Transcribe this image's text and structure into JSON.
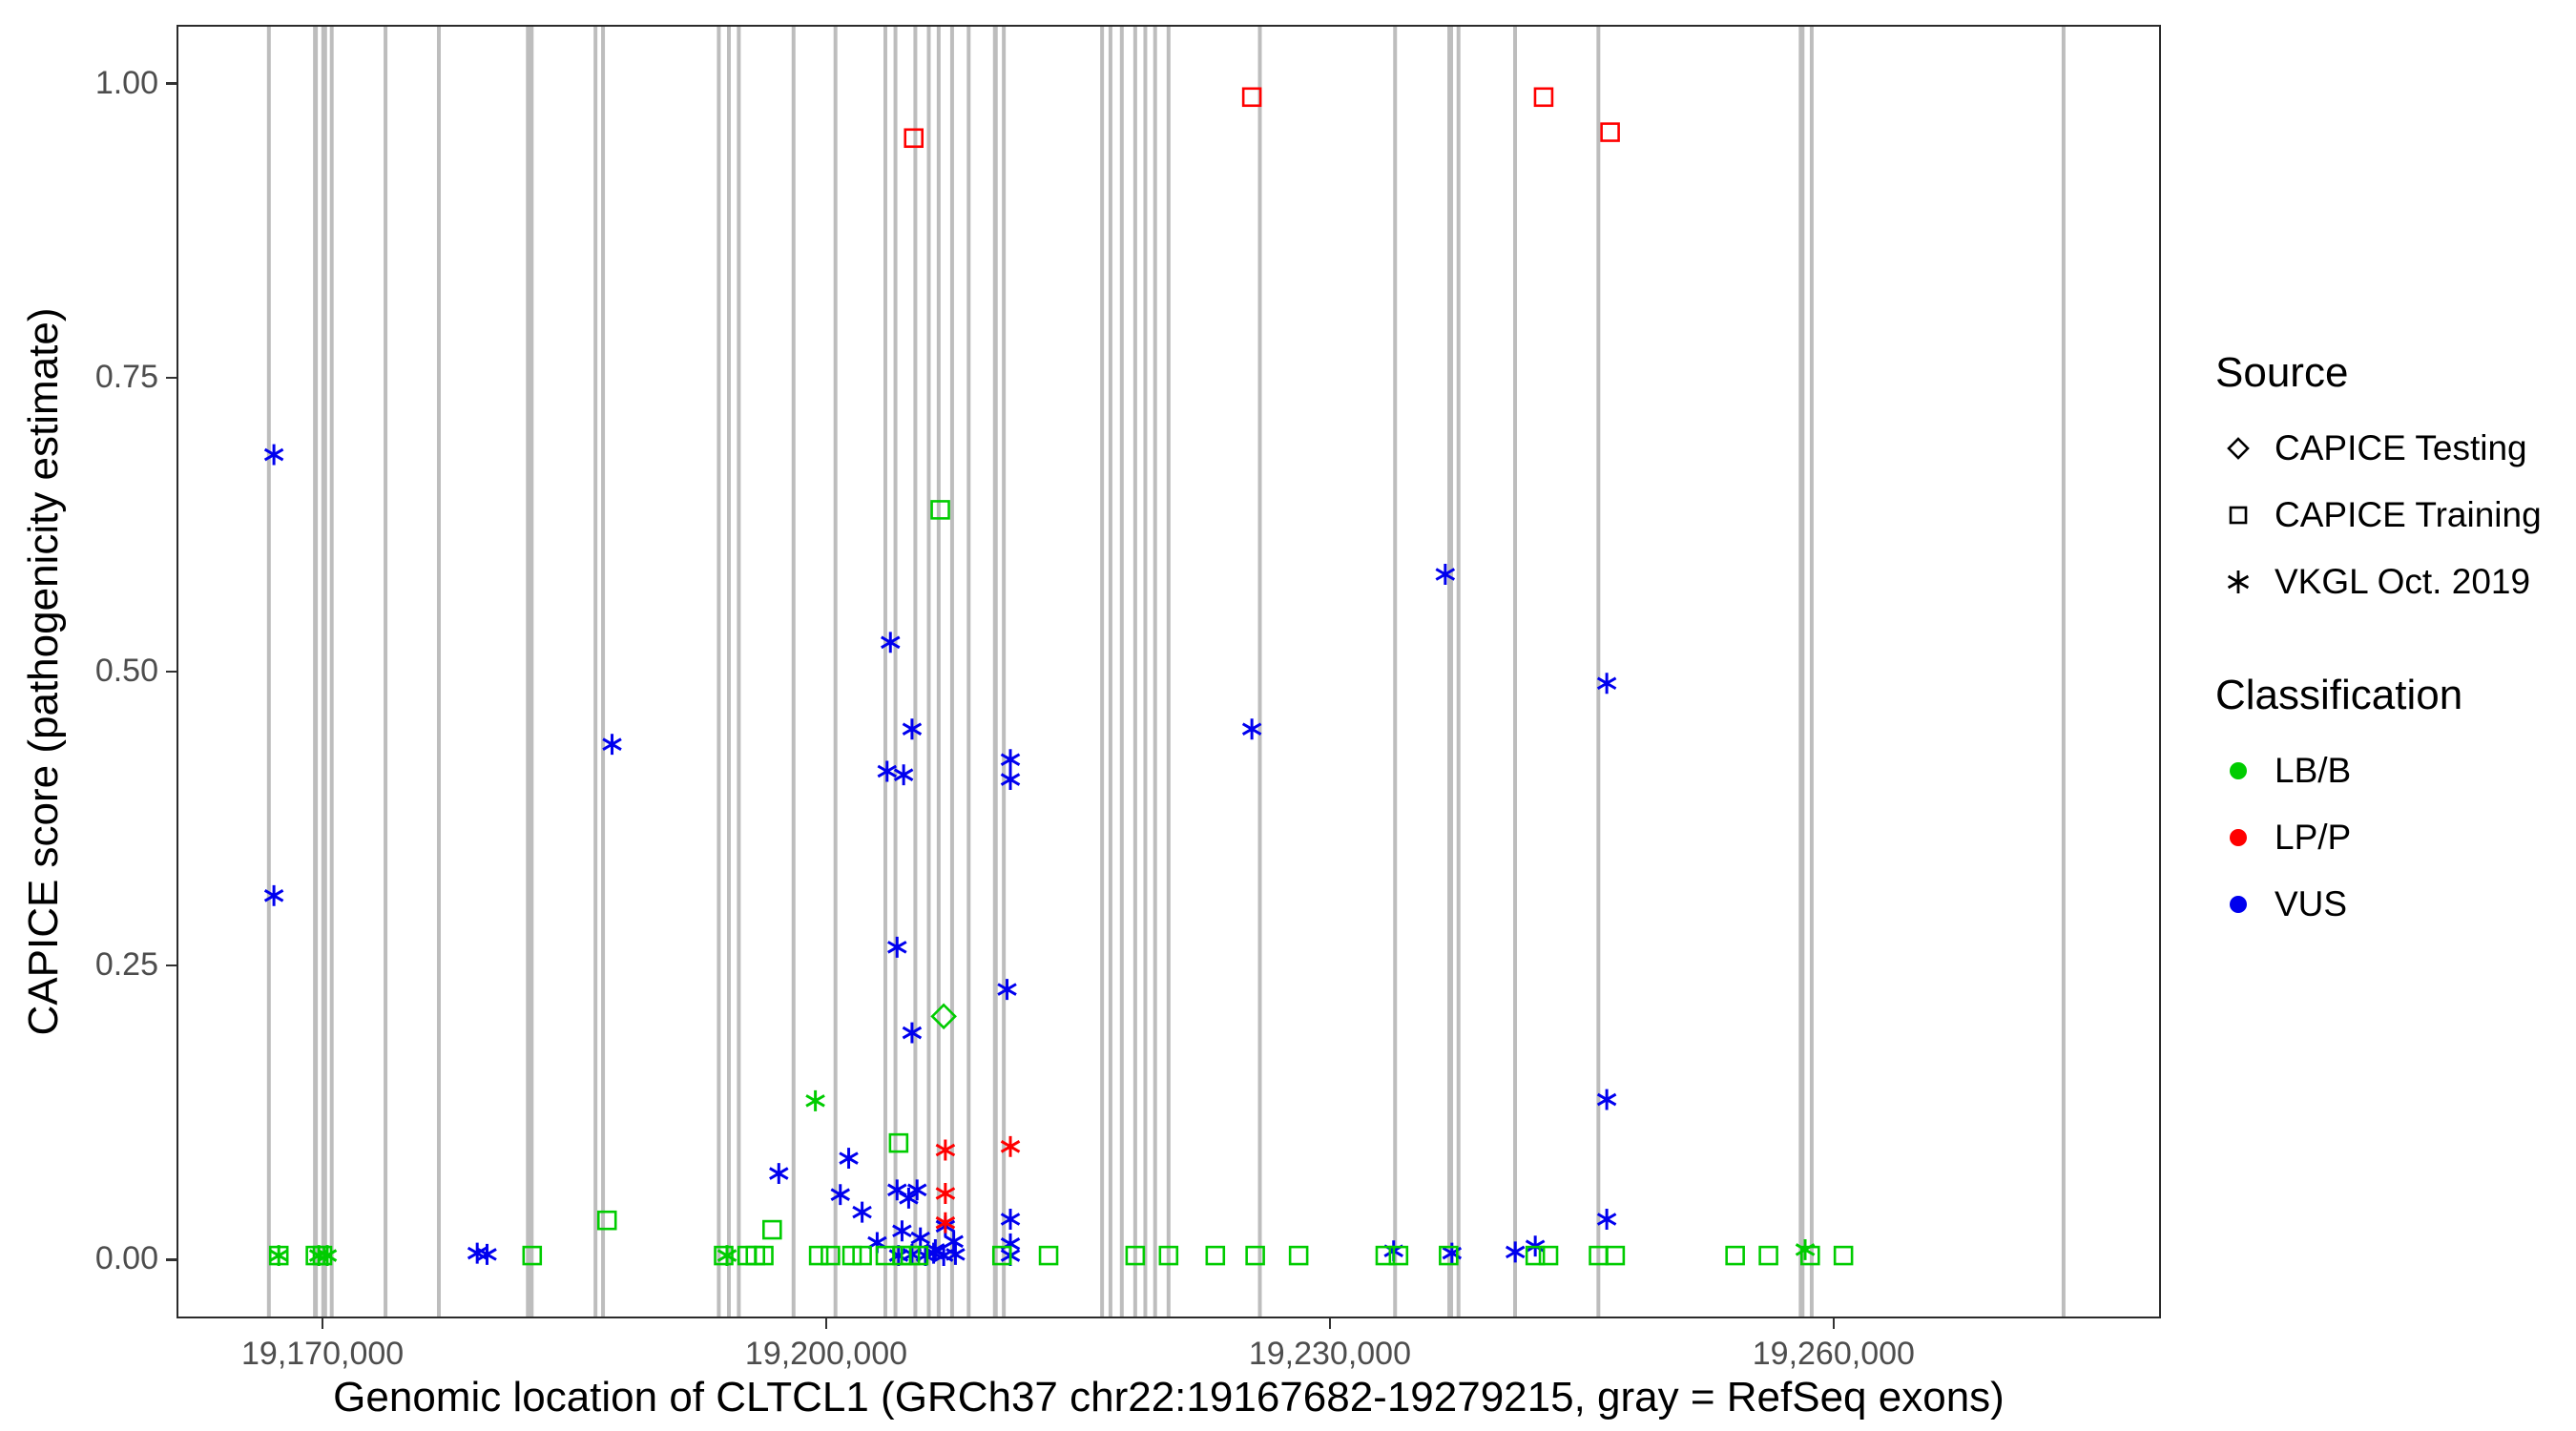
{
  "chart_data": {
    "type": "scatter",
    "title": "",
    "xlabel": "Genomic location of CLTCL1 (GRCh37 chr22:19167682-19279215, gray = RefSeq exons)",
    "ylabel": "CAPICE score (pathogenicity estimate)",
    "xlim": [
      19161300,
      19279500
    ],
    "ylim": [
      -0.05,
      1.05
    ],
    "grid": false,
    "legend_position": "right",
    "x_ticks": [
      {
        "value": 19170000,
        "label": "19,170,000"
      },
      {
        "value": 19200000,
        "label": "19,200,000"
      },
      {
        "value": 19230000,
        "label": "19,230,000"
      },
      {
        "value": 19260000,
        "label": "19,260,000"
      }
    ],
    "y_ticks": [
      {
        "value": 0.0,
        "label": "0.00"
      },
      {
        "value": 0.25,
        "label": "0.25"
      },
      {
        "value": 0.5,
        "label": "0.50"
      },
      {
        "value": 0.75,
        "label": "0.75"
      },
      {
        "value": 1.0,
        "label": "1.00"
      }
    ],
    "exon_color": "#bdbdbd",
    "exons": [
      [
        19166700,
        4
      ],
      [
        19169480,
        5
      ],
      [
        19170000,
        6
      ],
      [
        19170450,
        4
      ],
      [
        19173660,
        4
      ],
      [
        19176840,
        4
      ],
      [
        19182270,
        8
      ],
      [
        19186190,
        4
      ],
      [
        19186640,
        4
      ],
      [
        19193550,
        4
      ],
      [
        19194150,
        4
      ],
      [
        19194740,
        4
      ],
      [
        19198010,
        4
      ],
      [
        19200510,
        4
      ],
      [
        19203490,
        4
      ],
      [
        19204090,
        4
      ],
      [
        19205280,
        4
      ],
      [
        19206080,
        4
      ],
      [
        19206670,
        4
      ],
      [
        19207470,
        4
      ],
      [
        19208460,
        4
      ],
      [
        19210050,
        5
      ],
      [
        19210560,
        4
      ],
      [
        19216420,
        4
      ],
      [
        19216920,
        4
      ],
      [
        19217600,
        4
      ],
      [
        19218400,
        4
      ],
      [
        19219000,
        4
      ],
      [
        19219590,
        4
      ],
      [
        19220390,
        4
      ],
      [
        19225840,
        4
      ],
      [
        19233910,
        4
      ],
      [
        19237200,
        6
      ],
      [
        19237690,
        4
      ],
      [
        19241070,
        4
      ],
      [
        19246040,
        4
      ],
      [
        19258170,
        6
      ],
      [
        19258770,
        4
      ],
      [
        19273800,
        4
      ]
    ],
    "series": [
      {
        "name": "VKGL Oct. 2019 / VUS",
        "source": "VKGL Oct. 2019",
        "classification": "VUS",
        "shape": "asterisk",
        "color": "#0000ee",
        "points": [
          [
            19167000,
            0.685
          ],
          [
            19167000,
            0.309
          ],
          [
            19187180,
            0.438
          ],
          [
            19203790,
            0.525
          ],
          [
            19205080,
            0.451
          ],
          [
            19203590,
            0.415
          ],
          [
            19204580,
            0.412
          ],
          [
            19204190,
            0.265
          ],
          [
            19205080,
            0.192
          ],
          [
            19210950,
            0.425
          ],
          [
            19210950,
            0.408
          ],
          [
            19210750,
            0.229
          ],
          [
            19225360,
            0.451
          ],
          [
            19236900,
            0.583
          ],
          [
            19246540,
            0.49
          ],
          [
            19246540,
            0.135
          ],
          [
            19246540,
            0.033
          ],
          [
            19179130,
            0.004
          ],
          [
            19179720,
            0.003
          ],
          [
            19197130,
            0.072
          ],
          [
            19201300,
            0.085
          ],
          [
            19200800,
            0.054
          ],
          [
            19202100,
            0.039
          ],
          [
            19203000,
            0.013
          ],
          [
            19204190,
            0.058
          ],
          [
            19204880,
            0.051
          ],
          [
            19205380,
            0.058
          ],
          [
            19204480,
            0.023
          ],
          [
            19205580,
            0.017
          ],
          [
            19206470,
            0.007
          ],
          [
            19207070,
            0.027
          ],
          [
            19207570,
            0.014
          ],
          [
            19204280,
            0.002
          ],
          [
            19205080,
            0.003
          ],
          [
            19205880,
            0.002
          ],
          [
            19206370,
            0.004
          ],
          [
            19206970,
            0.002
          ],
          [
            19207670,
            0.003
          ],
          [
            19210950,
            0.033
          ],
          [
            19210950,
            0.012
          ],
          [
            19210950,
            0.002
          ],
          [
            19233820,
            0.006
          ],
          [
            19237300,
            0.004
          ],
          [
            19241080,
            0.005
          ],
          [
            19242270,
            0.01
          ]
        ]
      },
      {
        "name": "VKGL Oct. 2019 / LB/B",
        "source": "VKGL Oct. 2019",
        "classification": "LB/B",
        "shape": "asterisk",
        "color": "#00cc00",
        "points": [
          [
            19167290,
            0.002
          ],
          [
            19169680,
            0.002
          ],
          [
            19170180,
            0.002
          ],
          [
            19194040,
            0.002
          ],
          [
            19199310,
            0.134
          ],
          [
            19258380,
            0.007
          ]
        ]
      },
      {
        "name": "VKGL Oct. 2019 / LP/P",
        "source": "VKGL Oct. 2019",
        "classification": "LP/P",
        "shape": "asterisk",
        "color": "#ff0000",
        "points": [
          [
            19207070,
            0.092
          ],
          [
            19210950,
            0.095
          ],
          [
            19207070,
            0.055
          ],
          [
            19207070,
            0.03
          ]
        ]
      },
      {
        "name": "CAPICE Training / LB/B",
        "source": "CAPICE Training",
        "classification": "LB/B",
        "shape": "square",
        "color": "#00cc00",
        "points": [
          [
            19206770,
            0.638
          ],
          [
            19204280,
            0.098
          ],
          [
            19186880,
            0.032
          ],
          [
            19196730,
            0.024
          ],
          [
            19167290,
            0.002
          ],
          [
            19169480,
            0.002
          ],
          [
            19169900,
            0.002
          ],
          [
            19182410,
            0.002
          ],
          [
            19193840,
            0.002
          ],
          [
            19195240,
            0.002
          ],
          [
            19195730,
            0.002
          ],
          [
            19196230,
            0.002
          ],
          [
            19199510,
            0.002
          ],
          [
            19200210,
            0.002
          ],
          [
            19201500,
            0.002
          ],
          [
            19202100,
            0.002
          ],
          [
            19203490,
            0.002
          ],
          [
            19204480,
            0.002
          ],
          [
            19204980,
            0.002
          ],
          [
            19205480,
            0.002
          ],
          [
            19210450,
            0.002
          ],
          [
            19213230,
            0.002
          ],
          [
            19218400,
            0.002
          ],
          [
            19220390,
            0.002
          ],
          [
            19223180,
            0.002
          ],
          [
            19225560,
            0.002
          ],
          [
            19228150,
            0.002
          ],
          [
            19233320,
            0.002
          ],
          [
            19234110,
            0.002
          ],
          [
            19237100,
            0.002
          ],
          [
            19242270,
            0.002
          ],
          [
            19243060,
            0.002
          ],
          [
            19246050,
            0.002
          ],
          [
            19247040,
            0.002
          ],
          [
            19254200,
            0.002
          ],
          [
            19256190,
            0.002
          ],
          [
            19258680,
            0.002
          ],
          [
            19260660,
            0.002
          ]
        ]
      },
      {
        "name": "CAPICE Training / LP/P",
        "source": "CAPICE Training",
        "classification": "LP/P",
        "shape": "square",
        "color": "#ff0000",
        "points": [
          [
            19205180,
            0.955
          ],
          [
            19225360,
            0.99
          ],
          [
            19242770,
            0.99
          ],
          [
            19246740,
            0.96
          ]
        ]
      },
      {
        "name": "CAPICE Testing / LB/B",
        "source": "CAPICE Testing",
        "classification": "LB/B",
        "shape": "diamond",
        "color": "#00cc00",
        "points": [
          [
            19206970,
            0.206
          ]
        ]
      }
    ]
  },
  "legend": {
    "source": {
      "title": "Source",
      "items": [
        {
          "label": "CAPICE Testing",
          "shape": "diamond"
        },
        {
          "label": "CAPICE Training",
          "shape": "square"
        },
        {
          "label": "VKGL Oct. 2019",
          "shape": "asterisk"
        }
      ]
    },
    "classification": {
      "title": "Classification",
      "items": [
        {
          "label": "LB/B",
          "color": "#00cc00"
        },
        {
          "label": "LP/P",
          "color": "#ff0000"
        },
        {
          "label": "VUS",
          "color": "#0000ee"
        }
      ]
    }
  }
}
